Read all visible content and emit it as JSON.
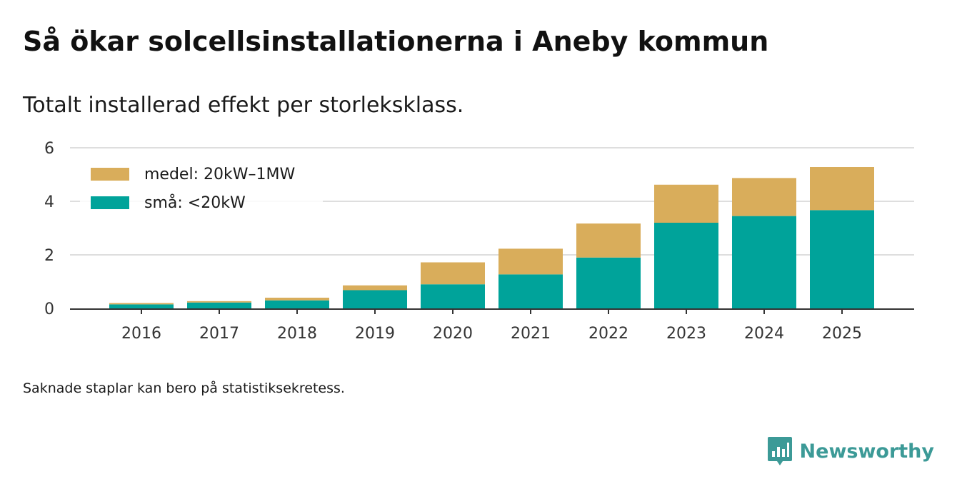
{
  "title": "Så ökar solcellsinstallationerna i Aneby kommun",
  "subtitle": "Totalt installerad effekt per storleksklass.",
  "note": "Saknade staplar kan bero på statistiksekretess.",
  "brand": {
    "name": "Newsworthy",
    "icon": "newsworthy-logo-icon",
    "color": "#3c9a97"
  },
  "chart_data": {
    "type": "bar",
    "stacked": true,
    "categories": [
      "2016",
      "2017",
      "2018",
      "2019",
      "2020",
      "2021",
      "2022",
      "2023",
      "2024",
      "2025"
    ],
    "series": [
      {
        "name": "små: <20kW",
        "color": "#00a39a",
        "values": [
          0.15,
          0.22,
          0.3,
          0.68,
          0.9,
          1.27,
          1.9,
          3.2,
          3.45,
          3.67
        ]
      },
      {
        "name": "medel: 20kW–1MW",
        "color": "#d9ad5b",
        "values": [
          0.05,
          0.05,
          0.1,
          0.18,
          0.82,
          0.96,
          1.27,
          1.42,
          1.42,
          1.61
        ]
      }
    ],
    "legend": [
      {
        "name": "medel: 20kW–1MW",
        "color": "#d9ad5b"
      },
      {
        "name": "små: <20kW",
        "color": "#00a39a"
      }
    ],
    "legend_position": "top-left",
    "yticks": [
      "0",
      "2",
      "4",
      "6"
    ],
    "ylim": [
      0,
      6
    ],
    "grid": true,
    "xlabel": "",
    "ylabel": ""
  }
}
